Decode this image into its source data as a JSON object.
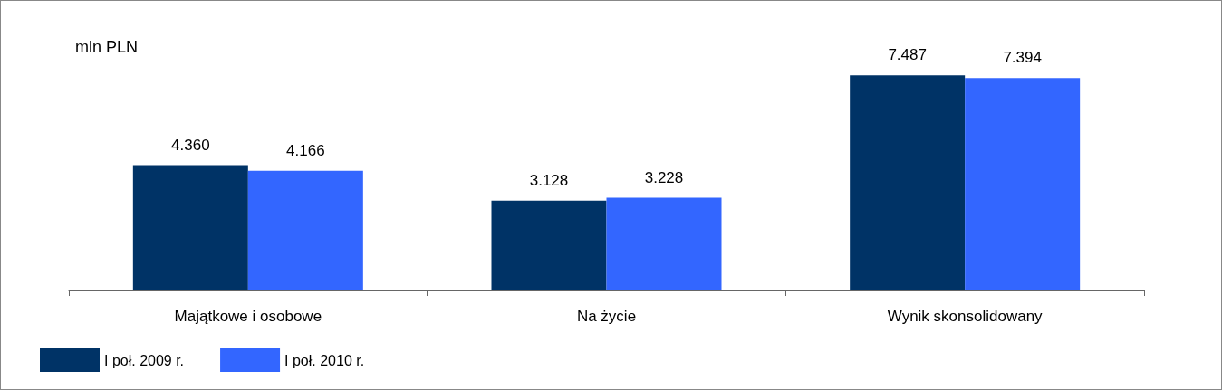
{
  "chart_data": {
    "type": "bar",
    "ylabel": "mln PLN",
    "categories": [
      "Majątkowe i osobowe",
      "Na życie",
      "Wynik skonsolidowany"
    ],
    "series": [
      {
        "name": "I poł. 2009 r.",
        "color": "#003366",
        "values": [
          4360,
          3128,
          7487
        ],
        "value_labels": [
          "4.360",
          "3.128",
          "7.487"
        ]
      },
      {
        "name": "I poł. 2010 r.",
        "color": "#3366ff",
        "values": [
          4166,
          3228,
          7394
        ],
        "value_labels": [
          "4.166",
          "3.228",
          "7.394"
        ]
      }
    ],
    "grid": false,
    "legend": "bottom left"
  }
}
